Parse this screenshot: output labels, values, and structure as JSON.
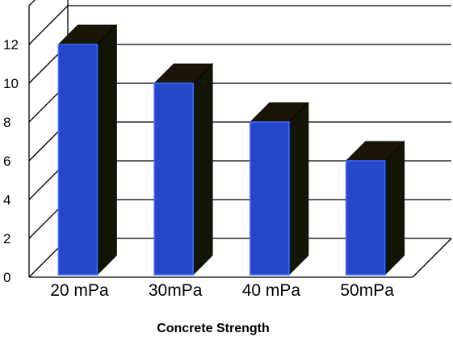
{
  "chart_data": {
    "type": "bar",
    "style": "3d",
    "title": "",
    "xlabel": "Concrete Strength",
    "ylabel": "",
    "categories": [
      "20 mPa",
      "30mPa",
      "40 mPa",
      "50mPa"
    ],
    "series": [
      {
        "values": [
          12,
          10,
          8,
          6
        ]
      }
    ],
    "yticks": [
      "0",
      "2",
      "4",
      "6",
      "8",
      "10",
      "12"
    ],
    "ylim": [
      0,
      14
    ],
    "grid": true,
    "legend": "none",
    "colors": {
      "bar_front": "#2448c8",
      "bar_edge": "#3a6cff",
      "bar_side": "#141405",
      "bar_top": "#1a1505",
      "grid": "#000000"
    }
  }
}
